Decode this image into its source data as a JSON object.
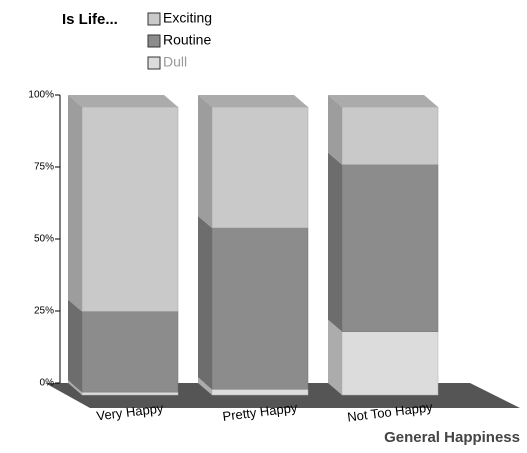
{
  "chart_data": {
    "type": "bar3d_stacked",
    "legend_title": "Is Life...",
    "x_label": "General Happiness",
    "categories": [
      "Very Happy",
      "Pretty Happy",
      "Not Too Happy"
    ],
    "series": [
      {
        "name": "Dull",
        "color": "#dcdcdc",
        "values": [
          1,
          2,
          22
        ]
      },
      {
        "name": "Routine",
        "color": "#8c8c8c",
        "values": [
          28,
          56,
          58
        ]
      },
      {
        "name": "Exciting",
        "color": "#c9c9c9",
        "values": [
          71,
          42,
          20
        ]
      }
    ],
    "legend_order": [
      "Exciting",
      "Routine",
      "Dull"
    ],
    "ylim": [
      0,
      100
    ],
    "yticks": [
      {
        "value": 0,
        "label": "0%"
      },
      {
        "value": 25,
        "label": "25%"
      },
      {
        "value": 50,
        "label": "50%"
      },
      {
        "value": 75,
        "label": "75%"
      },
      {
        "value": 100,
        "label": "100%"
      }
    ]
  }
}
